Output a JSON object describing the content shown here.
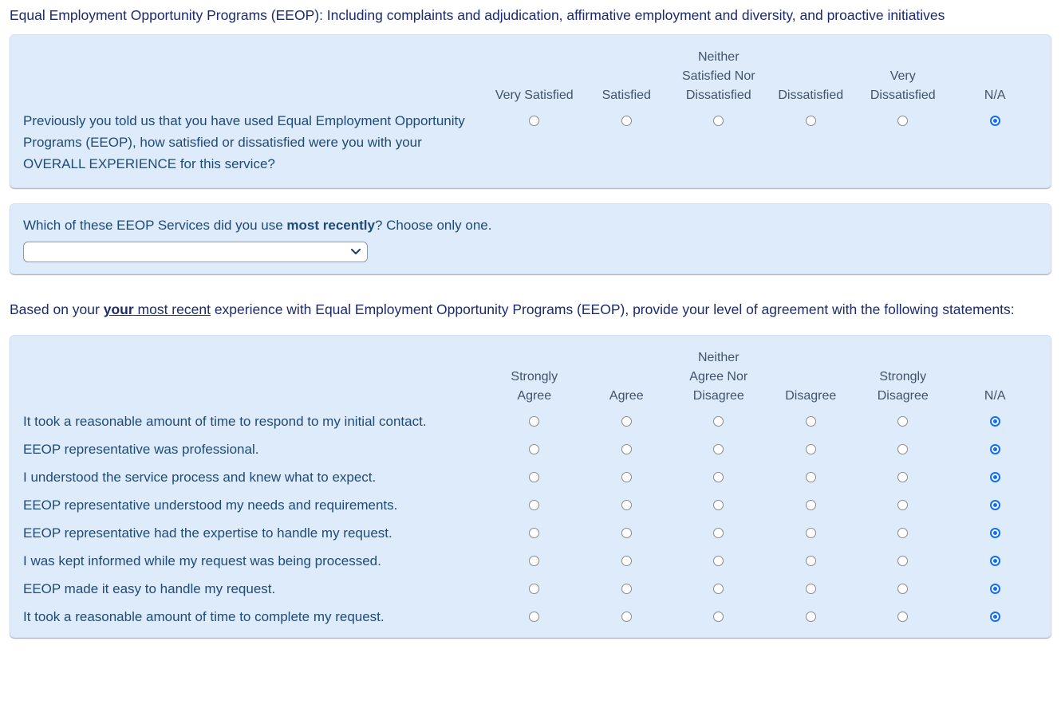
{
  "title": "Equal Employment Opportunity Programs (EEOP): Including complaints and adjudication, affirmative employment and diversity, and proactive initiatives",
  "satisfaction_matrix": {
    "columns": [
      [
        "Very Satisfied"
      ],
      [
        "Satisfied"
      ],
      [
        "Neither",
        "Satisfied Nor",
        "Dissatisfied"
      ],
      [
        "Dissatisfied"
      ],
      [
        "Very",
        "Dissatisfied"
      ],
      [
        "N/A"
      ]
    ],
    "rows": [
      {
        "text": "Previously you told us that you have used Equal Employment Opportunity Programs (EEOP), how satisfied or dissatisfied were you with your OVERALL EXPERIENCE for this service?",
        "selected": "N/A"
      }
    ]
  },
  "service_question": {
    "text_before": "Which of these EEOP Services did you use ",
    "bold_text": "most recently",
    "text_after": "? Choose only one.",
    "select_value": ""
  },
  "agreement_heading": {
    "text_before": "Based on your ",
    "underlined_bold": "your",
    "underlined_regular": " most recent",
    "text_after": " experience with Equal Employment Opportunity Programs (EEOP), provide your level of agreement with the following statements:"
  },
  "agreement_matrix": {
    "columns": [
      [
        "Strongly",
        "Agree"
      ],
      [
        "Agree"
      ],
      [
        "Neither",
        "Agree Nor",
        "Disagree"
      ],
      [
        "Disagree"
      ],
      [
        "Strongly",
        "Disagree"
      ],
      [
        "N/A"
      ]
    ],
    "rows": [
      {
        "text": "It took a reasonable amount of time to respond to my initial contact.",
        "selected": "N/A"
      },
      {
        "text": "EEOP representative was professional.",
        "selected": "N/A"
      },
      {
        "text": "I understood the service process and knew what to expect.",
        "selected": "N/A"
      },
      {
        "text": "EEOP representative understood my needs and requirements.",
        "selected": "N/A"
      },
      {
        "text": "EEOP representative had the expertise to handle my request.",
        "selected": "N/A"
      },
      {
        "text": "I was kept informed while my request was being processed.",
        "selected": "N/A"
      },
      {
        "text": "EEOP made it easy to handle my request.",
        "selected": "N/A"
      },
      {
        "text": "It took a reasonable amount of time to complete my request.",
        "selected": "N/A"
      }
    ]
  },
  "colors": {
    "panel_background": "#ddebfb",
    "title_text": "#1c2a6e",
    "body_text": "#1f4b76",
    "column_header_text": "#42546a",
    "radio_selected": "#0d6efd"
  }
}
